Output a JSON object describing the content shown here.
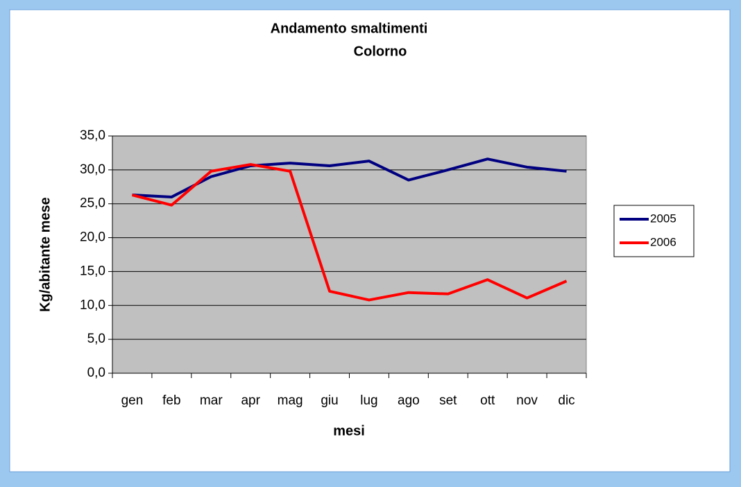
{
  "chart_data": {
    "type": "line",
    "title": "Andamento smaltimenti",
    "subtitle": "Colorno",
    "xlabel": "mesi",
    "ylabel": "Kg/abitante  mese",
    "categories": [
      "gen",
      "feb",
      "mar",
      "apr",
      "mag",
      "giu",
      "lug",
      "ago",
      "set",
      "ott",
      "nov",
      "dic"
    ],
    "series": [
      {
        "name": "2005",
        "color": "#000080",
        "values": [
          26.3,
          26.0,
          29.0,
          30.6,
          31.0,
          30.6,
          31.3,
          28.5,
          30.0,
          31.6,
          30.4,
          29.8
        ]
      },
      {
        "name": "2006",
        "color": "#ff0000",
        "values": [
          26.3,
          24.8,
          29.8,
          30.8,
          29.8,
          12.1,
          10.8,
          11.9,
          11.7,
          13.8,
          11.1,
          13.6
        ]
      }
    ],
    "ylim": [
      0,
      35
    ],
    "yticks": [
      {
        "value": 0,
        "label": "0,0"
      },
      {
        "value": 5,
        "label": "5,0"
      },
      {
        "value": 10,
        "label": "10,0"
      },
      {
        "value": 15,
        "label": "15,0"
      },
      {
        "value": 20,
        "label": "20,0"
      },
      {
        "value": 25,
        "label": "25,0"
      },
      {
        "value": 30,
        "label": "30,0"
      },
      {
        "value": 35,
        "label": "35,0"
      }
    ],
    "grid": true,
    "legend": "right",
    "plot_background": "#c0c0c0"
  }
}
